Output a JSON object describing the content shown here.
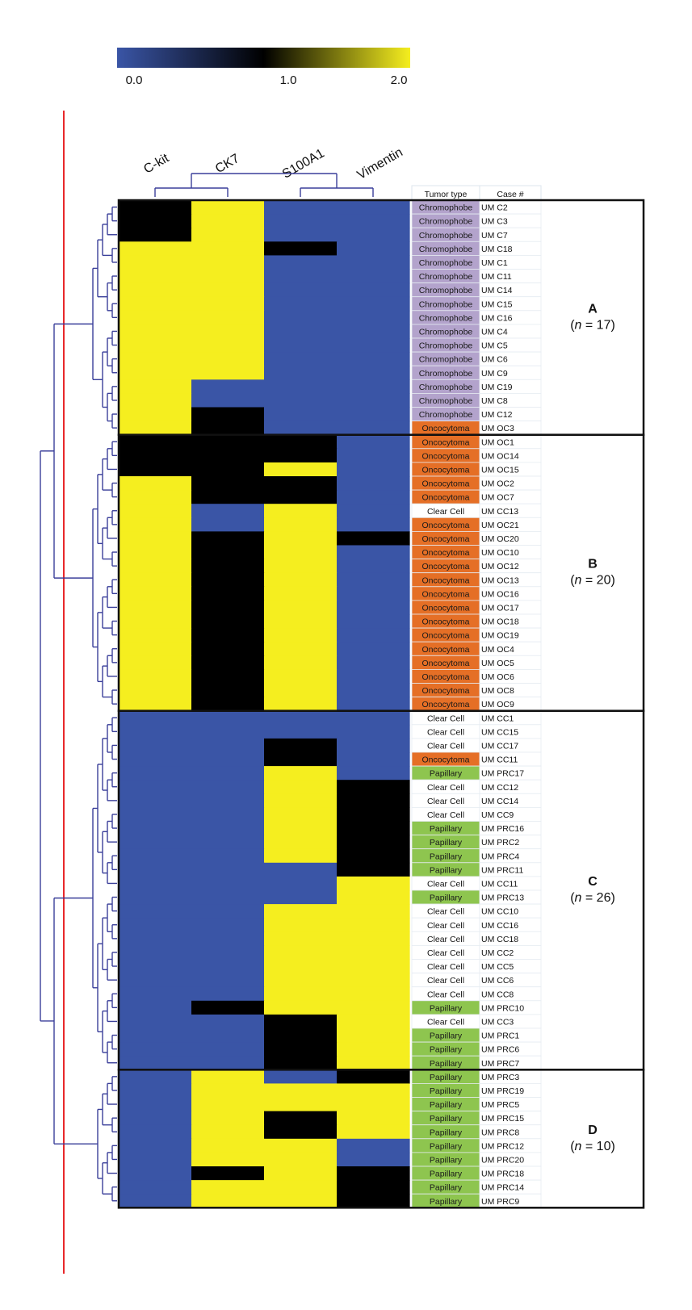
{
  "chart_data": {
    "type": "heatmap",
    "colorbar": {
      "ticks": [
        "0.0",
        "1.0",
        "2.0"
      ],
      "min": 0,
      "max": 2,
      "stops": [
        "#3a55a6",
        "#000000",
        "#f5ee1f"
      ]
    },
    "columns": [
      "C-kit",
      "CK7",
      "S100A1",
      "Vimentin"
    ],
    "table_headers": [
      "Tumor type",
      "Case #"
    ],
    "type_colors": {
      "Chromophobe": "#b3a3cc",
      "Oncocytoma": "#e56f26",
      "Clear Cell": "#ffffff",
      "Papillary": "#8ec54f"
    },
    "clusters": [
      {
        "letter": "A",
        "n_label": "(n = 17)",
        "n_prefix": "(",
        "n_var": "n",
        "n_suffix": " = 17)"
      },
      {
        "letter": "B",
        "n_label": "(n = 20)",
        "n_prefix": "(",
        "n_var": "n",
        "n_suffix": " = 20)"
      },
      {
        "letter": "C",
        "n_label": "(n = 26)",
        "n_prefix": "(",
        "n_var": "n",
        "n_suffix": " = 26)"
      },
      {
        "letter": "D",
        "n_label": "(n = 10)",
        "n_prefix": "(",
        "n_var": "n",
        "n_suffix": " = 10)"
      }
    ],
    "rows": [
      {
        "type": "Chromophobe",
        "case": "UM C2",
        "values": [
          1,
          2,
          0,
          0
        ]
      },
      {
        "type": "Chromophobe",
        "case": "UM C3",
        "values": [
          1,
          2,
          0,
          0
        ]
      },
      {
        "type": "Chromophobe",
        "case": "UM C7",
        "values": [
          1,
          2,
          0,
          0
        ]
      },
      {
        "type": "Chromophobe",
        "case": "UM C18",
        "values": [
          2,
          2,
          1,
          0
        ]
      },
      {
        "type": "Chromophobe",
        "case": "UM C1",
        "values": [
          2,
          2,
          0,
          0
        ]
      },
      {
        "type": "Chromophobe",
        "case": "UM C11",
        "values": [
          2,
          2,
          0,
          0
        ]
      },
      {
        "type": "Chromophobe",
        "case": "UM C14",
        "values": [
          2,
          2,
          0,
          0
        ]
      },
      {
        "type": "Chromophobe",
        "case": "UM C15",
        "values": [
          2,
          2,
          0,
          0
        ]
      },
      {
        "type": "Chromophobe",
        "case": "UM C16",
        "values": [
          2,
          2,
          0,
          0
        ]
      },
      {
        "type": "Chromophobe",
        "case": "UM C4",
        "values": [
          2,
          2,
          0,
          0
        ]
      },
      {
        "type": "Chromophobe",
        "case": "UM C5",
        "values": [
          2,
          2,
          0,
          0
        ]
      },
      {
        "type": "Chromophobe",
        "case": "UM C6",
        "values": [
          2,
          2,
          0,
          0
        ]
      },
      {
        "type": "Chromophobe",
        "case": "UM C9",
        "values": [
          2,
          2,
          0,
          0
        ]
      },
      {
        "type": "Chromophobe",
        "case": "UM C19",
        "values": [
          2,
          0,
          0,
          0
        ]
      },
      {
        "type": "Chromophobe",
        "case": "UM C8",
        "values": [
          2,
          0,
          0,
          0
        ]
      },
      {
        "type": "Chromophobe",
        "case": "UM C12",
        "values": [
          2,
          1,
          0,
          0
        ]
      },
      {
        "type": "Oncocytoma",
        "case": "UM OC3",
        "values": [
          2,
          1,
          0,
          0
        ]
      },
      {
        "type": "Oncocytoma",
        "case": "UM OC1",
        "values": [
          1,
          1,
          1,
          0
        ]
      },
      {
        "type": "Oncocytoma",
        "case": "UM OC14",
        "values": [
          1,
          1,
          1,
          0
        ]
      },
      {
        "type": "Oncocytoma",
        "case": "UM OC15",
        "values": [
          1,
          1,
          2,
          0
        ]
      },
      {
        "type": "Oncocytoma",
        "case": "UM OC2",
        "values": [
          2,
          1,
          1,
          0
        ]
      },
      {
        "type": "Oncocytoma",
        "case": "UM OC7",
        "values": [
          2,
          1,
          1,
          0
        ]
      },
      {
        "type": "Clear Cell",
        "case": "UM CC13",
        "values": [
          2,
          0,
          2,
          0
        ]
      },
      {
        "type": "Oncocytoma",
        "case": "UM OC21",
        "values": [
          2,
          0,
          2,
          0
        ]
      },
      {
        "type": "Oncocytoma",
        "case": "UM OC20",
        "values": [
          2,
          1,
          2,
          1
        ]
      },
      {
        "type": "Oncocytoma",
        "case": "UM OC10",
        "values": [
          2,
          1,
          2,
          0
        ]
      },
      {
        "type": "Oncocytoma",
        "case": "UM OC12",
        "values": [
          2,
          1,
          2,
          0
        ]
      },
      {
        "type": "Oncocytoma",
        "case": "UM OC13",
        "values": [
          2,
          1,
          2,
          0
        ]
      },
      {
        "type": "Oncocytoma",
        "case": "UM OC16",
        "values": [
          2,
          1,
          2,
          0
        ]
      },
      {
        "type": "Oncocytoma",
        "case": "UM OC17",
        "values": [
          2,
          1,
          2,
          0
        ]
      },
      {
        "type": "Oncocytoma",
        "case": "UM OC18",
        "values": [
          2,
          1,
          2,
          0
        ]
      },
      {
        "type": "Oncocytoma",
        "case": "UM OC19",
        "values": [
          2,
          1,
          2,
          0
        ]
      },
      {
        "type": "Oncocytoma",
        "case": "UM OC4",
        "values": [
          2,
          1,
          2,
          0
        ]
      },
      {
        "type": "Oncocytoma",
        "case": "UM OC5",
        "values": [
          2,
          1,
          2,
          0
        ]
      },
      {
        "type": "Oncocytoma",
        "case": "UM OC6",
        "values": [
          2,
          1,
          2,
          0
        ]
      },
      {
        "type": "Oncocytoma",
        "case": "UM OC8",
        "values": [
          2,
          1,
          2,
          0
        ]
      },
      {
        "type": "Oncocytoma",
        "case": "UM OC9",
        "values": [
          2,
          1,
          2,
          0
        ]
      },
      {
        "type": "Clear Cell",
        "case": "UM CC1",
        "values": [
          0,
          0,
          0,
          0
        ]
      },
      {
        "type": "Clear Cell",
        "case": "UM CC15",
        "values": [
          0,
          0,
          0,
          0
        ]
      },
      {
        "type": "Clear Cell",
        "case": "UM CC17",
        "values": [
          0,
          0,
          1,
          0
        ]
      },
      {
        "type": "Oncocytoma",
        "case": "UM CC11",
        "values": [
          0,
          0,
          1,
          0
        ]
      },
      {
        "type": "Papillary",
        "case": "UM PRC17",
        "values": [
          0,
          0,
          2,
          0
        ]
      },
      {
        "type": "Clear Cell",
        "case": "UM CC12",
        "values": [
          0,
          0,
          2,
          1
        ]
      },
      {
        "type": "Clear Cell",
        "case": "UM CC14",
        "values": [
          0,
          0,
          2,
          1
        ]
      },
      {
        "type": "Clear Cell",
        "case": "UM CC9",
        "values": [
          0,
          0,
          2,
          1
        ]
      },
      {
        "type": "Papillary",
        "case": "UM PRC16",
        "values": [
          0,
          0,
          2,
          1
        ]
      },
      {
        "type": "Papillary",
        "case": "UM PRC2",
        "values": [
          0,
          0,
          2,
          1
        ]
      },
      {
        "type": "Papillary",
        "case": "UM PRC4",
        "values": [
          0,
          0,
          2,
          1
        ]
      },
      {
        "type": "Papillary",
        "case": "UM PRC11",
        "values": [
          0,
          0,
          0,
          1
        ]
      },
      {
        "type": "Clear Cell",
        "case": "UM CC11",
        "values": [
          0,
          0,
          0,
          2
        ]
      },
      {
        "type": "Papillary",
        "case": "UM PRC13",
        "values": [
          0,
          0,
          0,
          2
        ]
      },
      {
        "type": "Clear Cell",
        "case": "UM CC10",
        "values": [
          0,
          0,
          2,
          2
        ]
      },
      {
        "type": "Clear Cell",
        "case": "UM CC16",
        "values": [
          0,
          0,
          2,
          2
        ]
      },
      {
        "type": "Clear Cell",
        "case": "UM CC18",
        "values": [
          0,
          0,
          2,
          2
        ]
      },
      {
        "type": "Clear Cell",
        "case": "UM CC2",
        "values": [
          0,
          0,
          2,
          2
        ]
      },
      {
        "type": "Clear Cell",
        "case": "UM CC5",
        "values": [
          0,
          0,
          2,
          2
        ]
      },
      {
        "type": "Clear Cell",
        "case": "UM CC6",
        "values": [
          0,
          0,
          2,
          2
        ]
      },
      {
        "type": "Clear Cell",
        "case": "UM CC8",
        "values": [
          0,
          0,
          2,
          2
        ]
      },
      {
        "type": "Papillary",
        "case": "UM PRC10",
        "values": [
          0,
          1,
          2,
          2
        ]
      },
      {
        "type": "Clear Cell",
        "case": "UM CC3",
        "values": [
          0,
          0,
          1,
          2
        ]
      },
      {
        "type": "Papillary",
        "case": "UM PRC1",
        "values": [
          0,
          0,
          1,
          2
        ]
      },
      {
        "type": "Papillary",
        "case": "UM PRC6",
        "values": [
          0,
          0,
          1,
          2
        ]
      },
      {
        "type": "Papillary",
        "case": "UM PRC7",
        "values": [
          0,
          0,
          1,
          2
        ]
      },
      {
        "type": "Papillary",
        "case": "UM PRC3",
        "values": [
          0,
          2,
          0,
          1
        ]
      },
      {
        "type": "Papillary",
        "case": "UM PRC19",
        "values": [
          0,
          2,
          2,
          2
        ]
      },
      {
        "type": "Papillary",
        "case": "UM PRC5",
        "values": [
          0,
          2,
          2,
          2
        ]
      },
      {
        "type": "Papillary",
        "case": "UM PRC15",
        "values": [
          0,
          2,
          1,
          2
        ]
      },
      {
        "type": "Papillary",
        "case": "UM PRC8",
        "values": [
          0,
          2,
          1,
          2
        ]
      },
      {
        "type": "Papillary",
        "case": "UM PRC12",
        "values": [
          0,
          2,
          2,
          0
        ]
      },
      {
        "type": "Papillary",
        "case": "UM PRC20",
        "values": [
          0,
          2,
          2,
          0
        ]
      },
      {
        "type": "Papillary",
        "case": "UM PRC18",
        "values": [
          0,
          1,
          2,
          1
        ]
      },
      {
        "type": "Papillary",
        "case": "UM PRC14",
        "values": [
          0,
          2,
          2,
          1
        ]
      },
      {
        "type": "Papillary",
        "case": "UM PRC9",
        "values": [
          0,
          2,
          2,
          1
        ]
      }
    ]
  }
}
